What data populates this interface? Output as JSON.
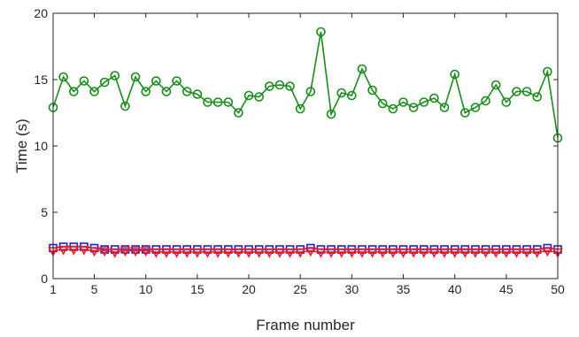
{
  "chart_data": {
    "type": "line",
    "title": "",
    "xlabel": "Frame number",
    "ylabel": "Time (s)",
    "xlim": [
      1,
      50
    ],
    "ylim": [
      0,
      20
    ],
    "xticks": [
      1,
      5,
      10,
      15,
      20,
      25,
      30,
      35,
      40,
      45,
      50
    ],
    "yticks": [
      0,
      5,
      10,
      15,
      20
    ],
    "grid": false,
    "legend": "none",
    "x": [
      1,
      2,
      3,
      4,
      5,
      6,
      7,
      8,
      9,
      10,
      11,
      12,
      13,
      14,
      15,
      16,
      17,
      18,
      19,
      20,
      21,
      22,
      23,
      24,
      25,
      26,
      27,
      28,
      29,
      30,
      31,
      32,
      33,
      34,
      35,
      36,
      37,
      38,
      39,
      40,
      41,
      42,
      43,
      44,
      45,
      46,
      47,
      48,
      49,
      50
    ],
    "series": [
      {
        "color": "#1a8c1a",
        "marker": "circle",
        "values": [
          12.9,
          15.2,
          14.1,
          14.9,
          14.1,
          14.8,
          15.3,
          13.0,
          15.2,
          14.1,
          14.9,
          14.1,
          14.9,
          14.1,
          13.9,
          13.3,
          13.3,
          13.3,
          12.5,
          13.8,
          13.7,
          14.5,
          14.6,
          14.5,
          12.8,
          14.1,
          18.6,
          12.4,
          14.0,
          13.8,
          15.8,
          14.2,
          13.2,
          12.8,
          13.3,
          12.9,
          13.3,
          13.6,
          12.9,
          15.4,
          12.5,
          12.9,
          13.4,
          14.6,
          13.3,
          14.1,
          14.1,
          13.7,
          15.6,
          10.6
        ]
      },
      {
        "color": "#1f1fcc",
        "marker": "square",
        "values": [
          2.3,
          2.4,
          2.4,
          2.4,
          2.3,
          2.2,
          2.2,
          2.2,
          2.2,
          2.2,
          2.2,
          2.2,
          2.2,
          2.2,
          2.2,
          2.2,
          2.2,
          2.2,
          2.2,
          2.2,
          2.2,
          2.2,
          2.2,
          2.2,
          2.2,
          2.3,
          2.2,
          2.2,
          2.2,
          2.2,
          2.2,
          2.2,
          2.2,
          2.2,
          2.2,
          2.2,
          2.2,
          2.2,
          2.2,
          2.2,
          2.2,
          2.2,
          2.2,
          2.2,
          2.2,
          2.2,
          2.2,
          2.2,
          2.3,
          2.2
        ]
      },
      {
        "color": "#ff1a1a",
        "marker": "triangle-down",
        "values": [
          2.1,
          2.2,
          2.2,
          2.2,
          2.1,
          2.1,
          2.0,
          2.1,
          2.1,
          2.1,
          2.0,
          2.0,
          2.0,
          2.0,
          2.0,
          2.0,
          2.0,
          2.0,
          2.0,
          2.0,
          2.0,
          2.0,
          2.0,
          2.0,
          2.0,
          2.1,
          2.0,
          2.0,
          2.0,
          2.0,
          2.0,
          2.0,
          2.0,
          2.0,
          2.0,
          2.0,
          2.0,
          2.0,
          2.0,
          2.0,
          2.0,
          2.0,
          2.0,
          2.0,
          2.0,
          2.0,
          2.0,
          2.0,
          2.1,
          2.0
        ]
      }
    ]
  }
}
